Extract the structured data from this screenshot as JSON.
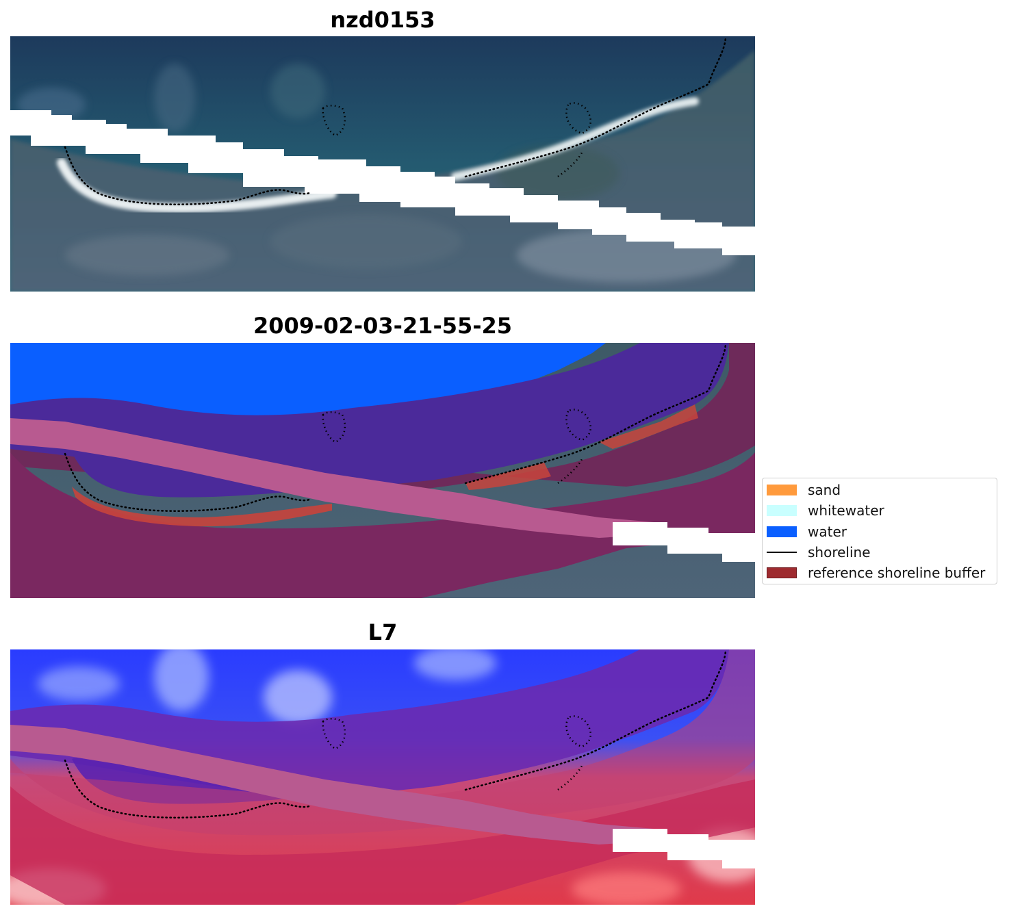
{
  "panels": [
    {
      "title": "nzd0153",
      "kind": "rgb"
    },
    {
      "title": "2009-02-03-21-55-25",
      "kind": "classified"
    },
    {
      "title": "L7",
      "kind": "index"
    }
  ],
  "legend": {
    "items": [
      {
        "label": "sand",
        "type": "patch",
        "color": "#ff9a3c"
      },
      {
        "label": "whitewater",
        "type": "patch",
        "color": "#c9ffff"
      },
      {
        "label": "water",
        "type": "patch",
        "color": "#0a5fff"
      },
      {
        "label": "shoreline",
        "type": "line",
        "color": "#000000"
      },
      {
        "label": "reference shoreline buffer",
        "type": "patch",
        "color": "#9e2a2f",
        "edge": "#6e1a1e"
      }
    ]
  }
}
